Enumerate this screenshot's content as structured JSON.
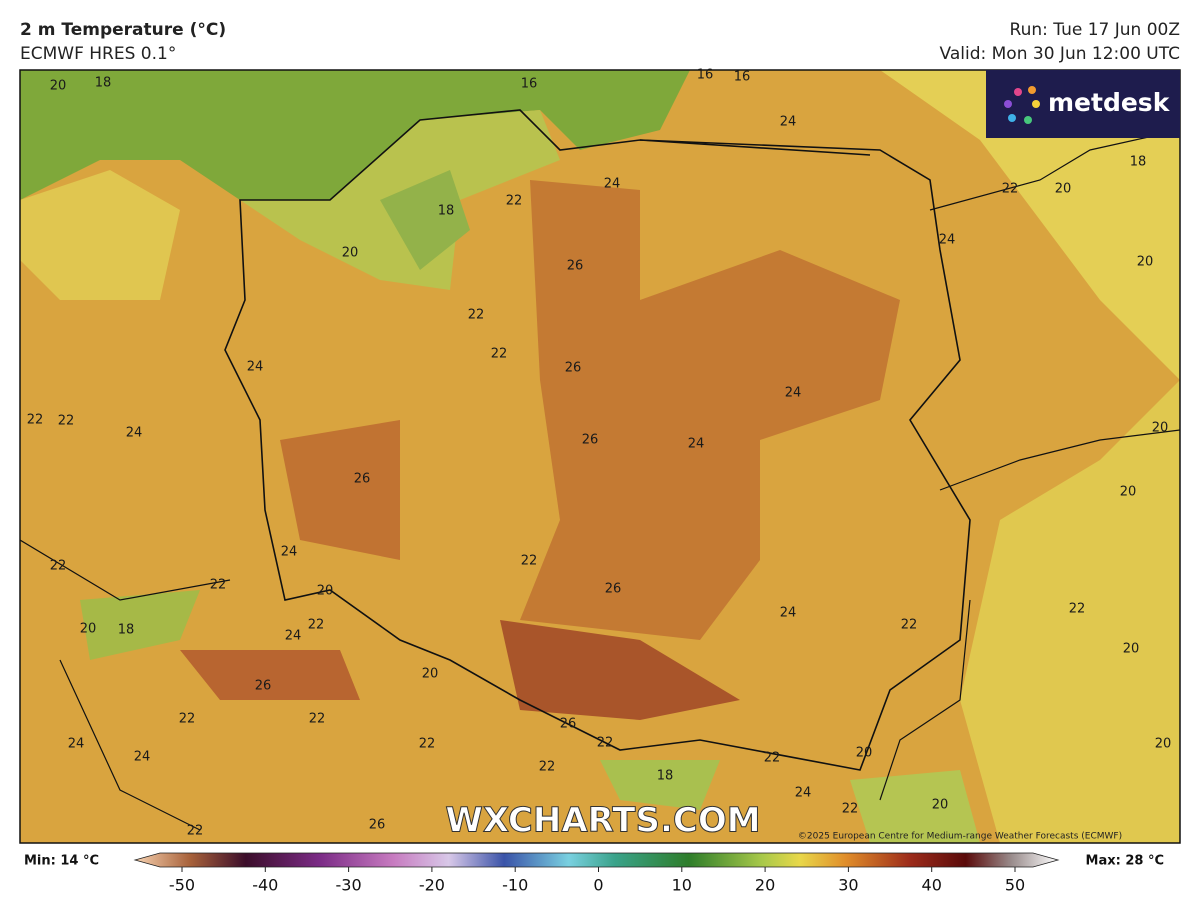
{
  "header": {
    "title": "2 m Temperature (°C)",
    "subtitle": "ECMWF HRES 0.1°",
    "run": "Run: Tue 17 Jun 00Z",
    "valid": "Valid: Mon 30 Jun 12:00 UTC"
  },
  "logo": "metdesk",
  "watermark": "WXCHARTS.COM",
  "copyright": "©2025 European Centre for Medium-range Weather Forecasts (ECMWF)",
  "map": {
    "labels": [
      20,
      18,
      16,
      16,
      16,
      24,
      18,
      22,
      20,
      24,
      22,
      18,
      24,
      20,
      26,
      20,
      22,
      22,
      26,
      24,
      24,
      22,
      22,
      24,
      26,
      24,
      20,
      26,
      20,
      24,
      22,
      22,
      22,
      20,
      26,
      24,
      22,
      24,
      18,
      20,
      22,
      22,
      20,
      20,
      26,
      22,
      22,
      26,
      22,
      22,
      24,
      24,
      22,
      20,
      20,
      22,
      18,
      24,
      22,
      20,
      22,
      26
    ]
  },
  "colorbar": {
    "min_label": "Min: 14 °C",
    "max_label": "Max: 28 °C",
    "range": [
      -50,
      50
    ],
    "ticks": [
      -50,
      -40,
      -30,
      -20,
      -10,
      0,
      10,
      20,
      30,
      40,
      50
    ]
  }
}
